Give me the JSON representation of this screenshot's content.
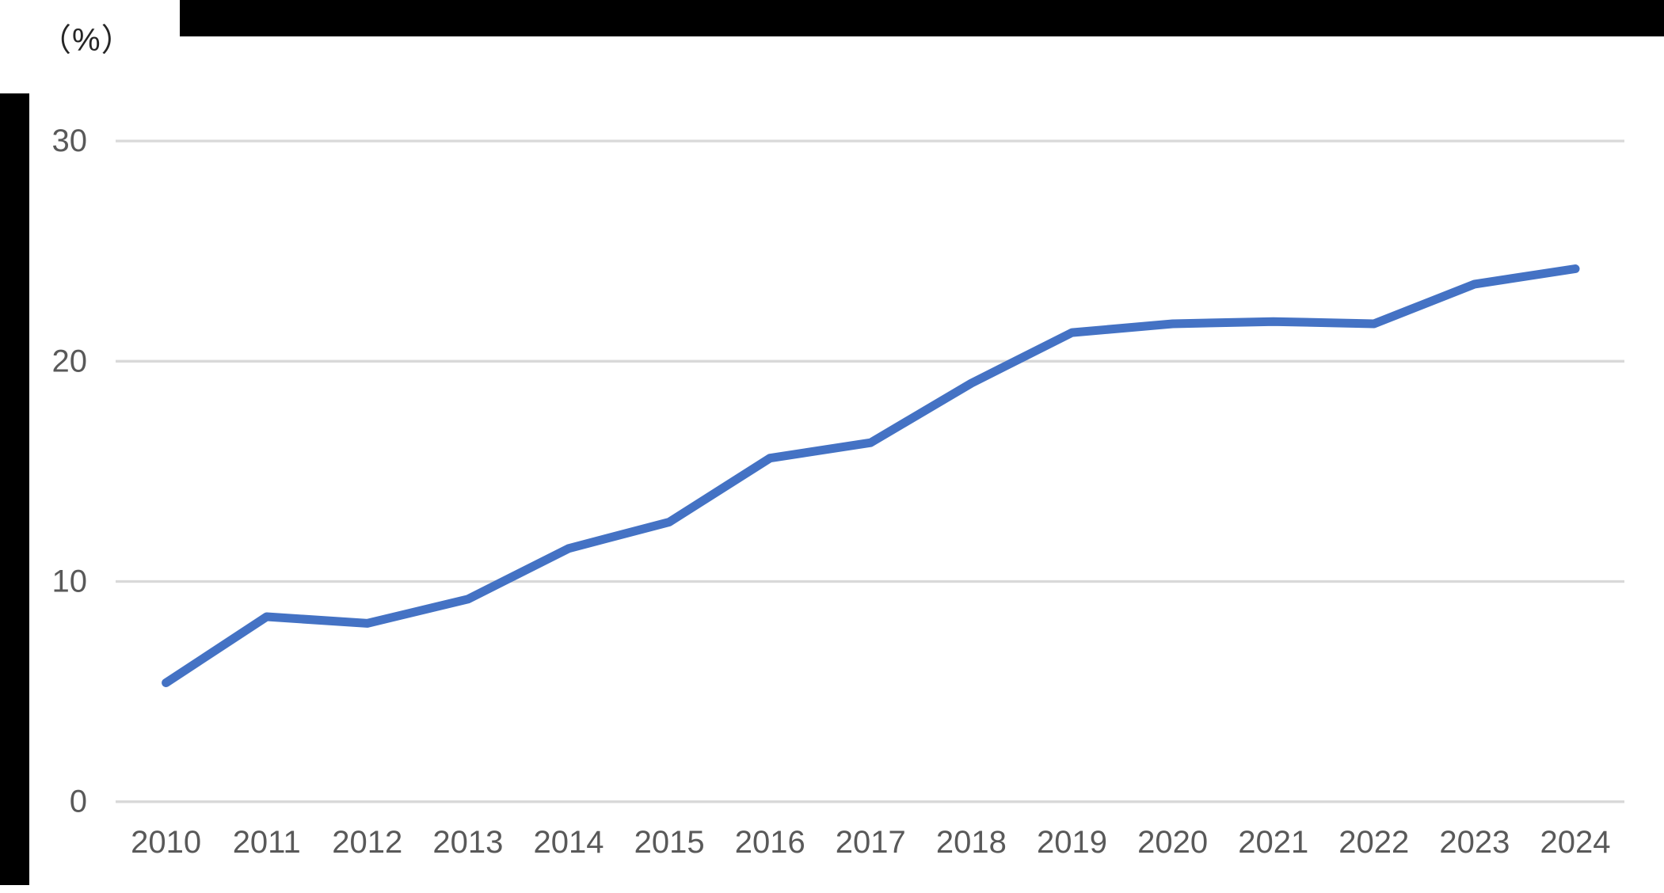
{
  "unit_label": "（%）",
  "colors": {
    "background": "#FFFFFF",
    "frame_bars": "#000000",
    "line": "#4472C4",
    "gridline": "#D9D9D9",
    "axis_text": "#595959",
    "unit_text": "#262626"
  },
  "chart_data": {
    "type": "line",
    "title": "",
    "xlabel": "",
    "ylabel": "（%）",
    "categories": [
      "2010",
      "2011",
      "2012",
      "2013",
      "2014",
      "2015",
      "2016",
      "2017",
      "2018",
      "2019",
      "2020",
      "2021",
      "2022",
      "2023",
      "2024"
    ],
    "values": [
      5.4,
      8.4,
      8.1,
      9.2,
      11.5,
      12.7,
      15.6,
      16.3,
      19.0,
      21.3,
      21.7,
      21.8,
      21.7,
      23.5,
      24.2
    ],
    "yticks": [
      0,
      10,
      20,
      30
    ],
    "ylim": [
      0,
      33
    ],
    "grid": true,
    "legend": false,
    "line_width": 11
  }
}
